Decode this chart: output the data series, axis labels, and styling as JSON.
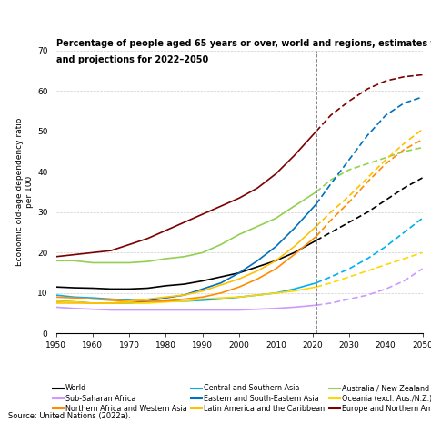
{
  "title1": "Percentage of people aged 65 years or over, world and regions, estimates for 1950–2021",
  "title2": "and projections for 2022–2050",
  "ylabel": "Economic old-age dependency ratio\nper 100",
  "source": "Source: United Nations (2022a).",
  "ylim": [
    0,
    70
  ],
  "xlim": [
    1950,
    2050
  ],
  "split_year": 2021,
  "years_hist": [
    1950,
    1955,
    1960,
    1965,
    1970,
    1975,
    1980,
    1985,
    1990,
    1995,
    2000,
    2005,
    2010,
    2015,
    2021
  ],
  "years_proj": [
    2021,
    2025,
    2030,
    2035,
    2040,
    2045,
    2050
  ],
  "series": [
    {
      "name": "World",
      "color": "#000000",
      "hist": [
        11.5,
        11.3,
        11.2,
        11.0,
        11.0,
        11.2,
        11.8,
        12.2,
        13.0,
        14.0,
        15.0,
        16.5,
        18.0,
        20.0,
        23.0
      ],
      "proj": [
        23.0,
        25.0,
        27.5,
        30.0,
        33.0,
        36.0,
        38.5
      ]
    },
    {
      "name": "Central and Southern Asia",
      "color": "#00b0f0",
      "hist": [
        9.5,
        9.0,
        8.8,
        8.5,
        8.2,
        8.0,
        8.0,
        8.0,
        8.2,
        8.5,
        9.0,
        9.5,
        10.0,
        11.0,
        12.5
      ],
      "proj": [
        12.5,
        14.0,
        16.0,
        18.5,
        21.5,
        25.0,
        28.5
      ]
    },
    {
      "name": "Australia / New Zealand",
      "color": "#92d050",
      "hist": [
        18.0,
        18.0,
        17.5,
        17.5,
        17.5,
        17.8,
        18.5,
        19.0,
        20.0,
        22.0,
        24.5,
        26.5,
        28.5,
        31.5,
        35.0
      ],
      "proj": [
        35.0,
        38.0,
        40.5,
        42.0,
        43.5,
        45.0,
        46.0
      ]
    },
    {
      "name": "Sub-Saharan Africa",
      "color": "#cc99ff",
      "hist": [
        6.5,
        6.2,
        6.0,
        5.8,
        5.8,
        5.8,
        5.8,
        5.8,
        5.8,
        5.8,
        5.8,
        6.0,
        6.2,
        6.5,
        7.0
      ],
      "proj": [
        7.0,
        7.5,
        8.5,
        9.5,
        11.0,
        13.0,
        16.0
      ]
    },
    {
      "name": "Eastern and South-⁠Eastern Asia",
      "color": "#0070c0",
      "hist": [
        8.0,
        7.8,
        7.5,
        7.5,
        7.5,
        8.0,
        8.8,
        9.5,
        11.0,
        12.5,
        15.0,
        18.0,
        21.5,
        26.0,
        32.0
      ],
      "proj": [
        32.0,
        37.0,
        43.0,
        49.0,
        54.0,
        57.0,
        58.5
      ]
    },
    {
      "name": "Oceania (excl. Aus./N.Z.)",
      "color": "#ffd700",
      "hist": [
        8.0,
        7.8,
        7.5,
        7.5,
        7.5,
        7.5,
        7.8,
        8.0,
        8.5,
        8.8,
        9.0,
        9.5,
        10.0,
        10.5,
        11.5
      ],
      "proj": [
        11.5,
        12.5,
        14.0,
        15.5,
        17.0,
        18.5,
        20.0
      ]
    },
    {
      "name": "Northern Africa and Western Asia",
      "color": "#ff8c00",
      "hist": [
        9.0,
        8.8,
        8.5,
        8.2,
        8.0,
        8.0,
        8.0,
        8.5,
        9.0,
        10.0,
        11.5,
        13.5,
        16.0,
        19.5,
        24.0
      ],
      "proj": [
        24.0,
        28.0,
        32.5,
        37.5,
        42.0,
        45.5,
        48.0
      ]
    },
    {
      "name": "Latin America and the Caribbean",
      "color": "#ffc000",
      "hist": [
        7.5,
        7.5,
        7.5,
        7.5,
        8.0,
        8.5,
        9.0,
        9.5,
        10.5,
        12.0,
        13.5,
        15.5,
        18.0,
        21.5,
        26.5
      ],
      "proj": [
        26.5,
        30.0,
        34.0,
        38.5,
        43.0,
        47.0,
        50.5
      ]
    },
    {
      "name": "Europe and Northern America",
      "color": "#7b0000",
      "hist": [
        19.0,
        19.5,
        20.0,
        20.5,
        22.0,
        23.5,
        25.5,
        27.5,
        29.5,
        31.5,
        33.5,
        36.0,
        39.5,
        44.0,
        50.0
      ],
      "proj": [
        50.0,
        54.0,
        57.5,
        60.5,
        62.5,
        63.5,
        64.0
      ]
    }
  ],
  "legend_order": [
    "World",
    "Sub-Saharan Africa",
    "Northern Africa and Western Asia",
    "Central and Southern Asia",
    "Eastern and South-⁠Eastern Asia",
    "Latin America and the Caribbean",
    "Australia / New Zealand",
    "Oceania (excl. Aus./N.Z.)",
    "Europe and Northern America"
  ],
  "legend_colors": {
    "World": "#000000",
    "Sub-Saharan Africa": "#cc99ff",
    "Northern Africa and Western Asia": "#ff8c00",
    "Central and Southern Asia": "#00b0f0",
    "Eastern and South-⁠Eastern Asia": "#0070c0",
    "Latin America and the Caribbean": "#ffc000",
    "Australia / New Zealand": "#92d050",
    "Oceania (excl. Aus./N.Z.)": "#ffd700",
    "Europe and Northern America": "#7b0000"
  },
  "legend_display": {
    "World": "World",
    "Sub-Saharan Africa": "Sub-Saharan Africa",
    "Northern Africa and Western Asia": "Northern Africa and Western Asia",
    "Central and Southern Asia": "Central and Southern Asia",
    "Eastern and South-⁠Eastern Asia": "Eastern and South-Eastern Asia",
    "Latin America and the Caribbean": "Latin America and the Caribbean",
    "Australia / New Zealand": "Australia / New Zealand",
    "Oceania (excl. Aus./N.Z.)": "Oceania (excl. Aus./N.Z.)",
    "Europe and Northern America": "Europe and Northern America"
  }
}
